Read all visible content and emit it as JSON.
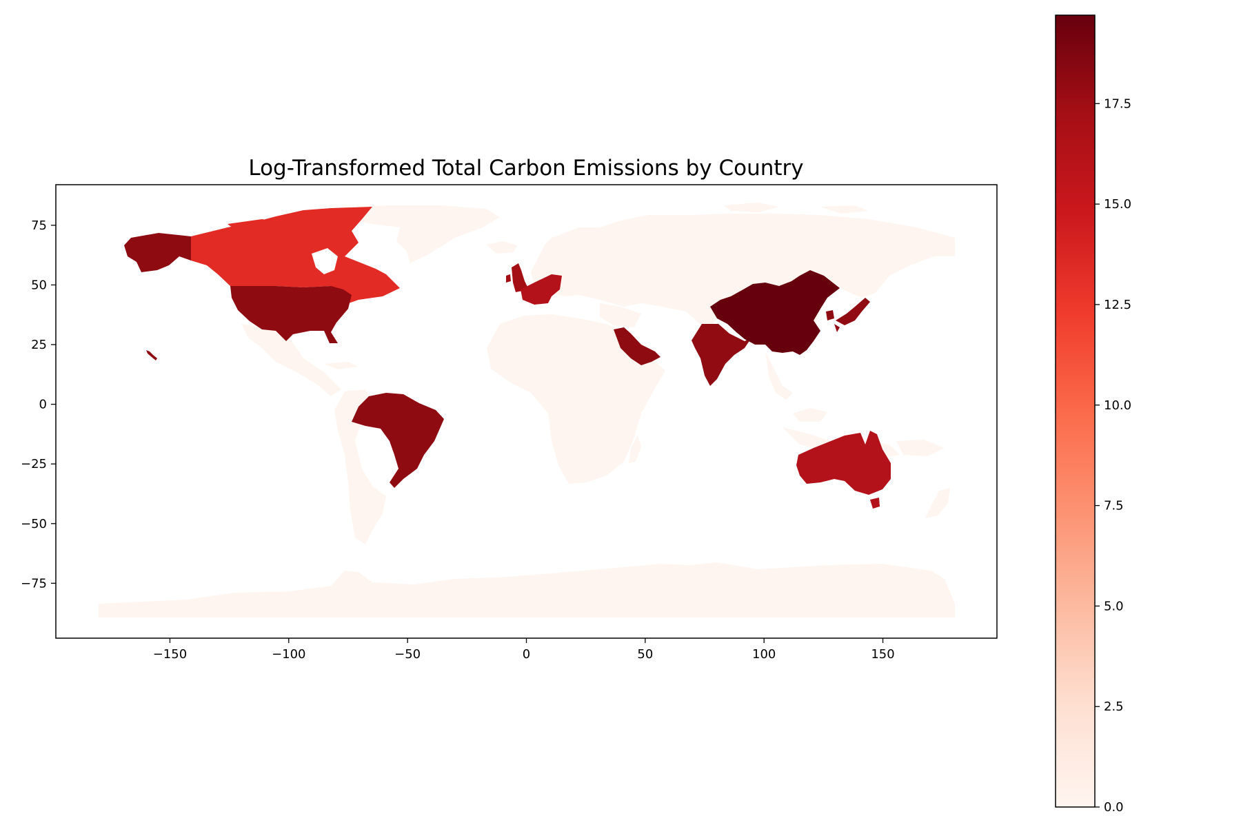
{
  "chart_data": {
    "type": "choropleth",
    "title": "Log-Transformed Total Carbon Emissions by Country",
    "xlabel": "",
    "ylabel": "",
    "xlim": [
      -198,
      198
    ],
    "ylim": [
      -98,
      92
    ],
    "x_ticks": [
      {
        "value": -150,
        "label": "−150"
      },
      {
        "value": -100,
        "label": "−100"
      },
      {
        "value": -50,
        "label": "−50"
      },
      {
        "value": 0,
        "label": "0"
      },
      {
        "value": 50,
        "label": "50"
      },
      {
        "value": 100,
        "label": "100"
      },
      {
        "value": 150,
        "label": "150"
      }
    ],
    "y_ticks": [
      {
        "value": 75,
        "label": "75"
      },
      {
        "value": 50,
        "label": "50"
      },
      {
        "value": 25,
        "label": "25"
      },
      {
        "value": 0,
        "label": "0"
      },
      {
        "value": -25,
        "label": "−25"
      },
      {
        "value": -50,
        "label": "−50"
      },
      {
        "value": -75,
        "label": "−75"
      }
    ],
    "grid": false,
    "legend": "colorbar-right",
    "colormap": "Reds",
    "colorbar": {
      "min": 0,
      "max": 19.7,
      "ticks": [
        {
          "value": 0,
          "label": "0.0"
        },
        {
          "value": 2.5,
          "label": "2.5"
        },
        {
          "value": 5,
          "label": "5.0"
        },
        {
          "value": 7.5,
          "label": "7.5"
        },
        {
          "value": 10,
          "label": "10.0"
        },
        {
          "value": 12.5,
          "label": "12.5"
        },
        {
          "value": 15,
          "label": "15.0"
        },
        {
          "value": 17.5,
          "label": "17.5"
        }
      ]
    },
    "colors": {
      "c0": "#fff5f0",
      "c25": "#fee0d2",
      "c37": "#fcbba1",
      "c50": "#fc9272",
      "c62": "#fb6a4a",
      "c75": "#ef3b2c",
      "c87": "#cb181d",
      "c100": "#67000d",
      "background_land": "#fff5f0"
    },
    "regions": [
      {
        "name": "China",
        "value": 19.6
      },
      {
        "name": "United States",
        "value": 18.6
      },
      {
        "name": "Alaska",
        "value": 18.6
      },
      {
        "name": "India",
        "value": 18.2
      },
      {
        "name": "Japan",
        "value": 17.9
      },
      {
        "name": "Saudi Arabia",
        "value": 17.5
      },
      {
        "name": "Brazil",
        "value": 17.9
      },
      {
        "name": "United Kingdom",
        "value": 17.3
      },
      {
        "name": "France",
        "value": 16.6
      },
      {
        "name": "South Korea",
        "value": 17.8
      },
      {
        "name": "Australia",
        "value": 16.4
      },
      {
        "name": "Canada",
        "value": 14.0
      }
    ]
  }
}
